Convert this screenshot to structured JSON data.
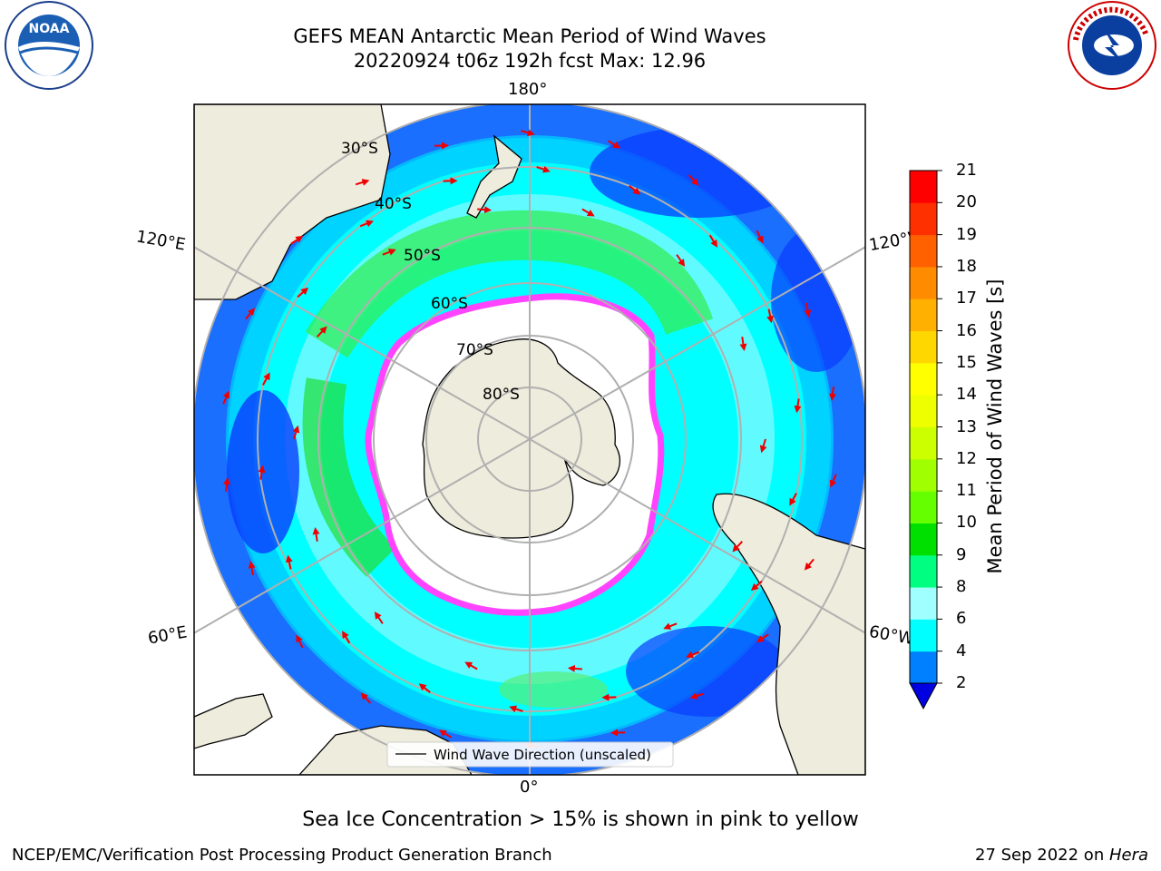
{
  "header": {
    "title_line1": "GEFS MEAN Antarctic Mean Period of Wind Waves",
    "title_line2": "20220924 t06z 192h fcst   Max: 12.96"
  },
  "logos": {
    "left": "NOAA",
    "right": "NATIONAL WEATHER SERVICE"
  },
  "map": {
    "projection": "south-polar-stereographic",
    "longitude_labels": [
      "180°",
      "120°E",
      "120°W",
      "60°E",
      "60°W",
      "0°"
    ],
    "latitude_labels": [
      "30°S",
      "40°S",
      "50°S",
      "60°S",
      "70°S",
      "80°S"
    ],
    "legend_entry": "Wind Wave Direction (unscaled)",
    "colors": {
      "land": "#eeecdc",
      "sea_ice": "#ffffff",
      "ice_edge": "#ff44ff"
    }
  },
  "colorbar": {
    "title": "Mean Period of Wind Waves [s]",
    "ticks": [
      "2",
      "4",
      "6",
      "8",
      "9",
      "10",
      "11",
      "12",
      "13",
      "14",
      "15",
      "16",
      "17",
      "18",
      "19",
      "20",
      "21"
    ],
    "colors": [
      "#0000f0",
      "#0080ff",
      "#00ffff",
      "#a0ffff",
      "#00ff80",
      "#00e000",
      "#66ff00",
      "#a0ff00",
      "#ccff00",
      "#eeff00",
      "#ffff00",
      "#ffd700",
      "#ffb000",
      "#ff8c00",
      "#ff6000",
      "#ff3000",
      "#ff0000"
    ],
    "under_color": "#0000e0"
  },
  "footer": {
    "caption": "Sea Ice Concentration > 15% is shown in pink to yellow",
    "left": "NCEP/EMC/Verification Post Processing Product Generation Branch",
    "right_date": "27 Sep 2022 on ",
    "right_host": "Hera"
  }
}
